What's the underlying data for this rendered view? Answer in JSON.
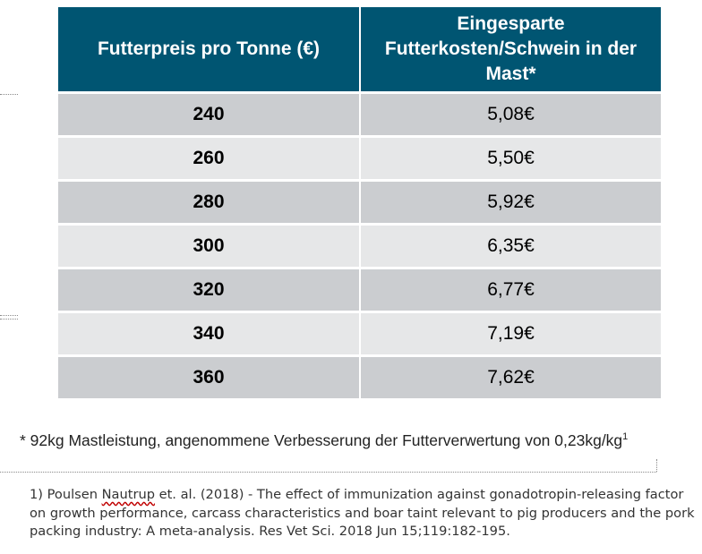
{
  "table": {
    "headers": [
      "Futterpreis pro Tonne (€)",
      "Eingesparte Futterkosten/Schwein in der Mast*"
    ],
    "rows": [
      [
        "240",
        "5,08€"
      ],
      [
        "260",
        "5,50€"
      ],
      [
        "280",
        "5,92€"
      ],
      [
        "300",
        "6,35€"
      ],
      [
        "320",
        "6,77€"
      ],
      [
        "340",
        "7,19€"
      ],
      [
        "360",
        "7,62€"
      ]
    ],
    "colors": {
      "header_bg": "#005572",
      "row_dark": "#cbcdd0",
      "row_light": "#e6e7e8"
    }
  },
  "footnote": {
    "text": "* 92kg Mastleistung, angenommene Verbesserung der Futterverwertung von 0,23kg/kg",
    "superscript": "1"
  },
  "reference": {
    "prefix": "1) Poulsen ",
    "flagged_word": "Nautrup",
    "suffix": " et. al. (2018) - The effect of immunization against gonadotropin-releasing factor on growth performance, carcass characteristics and boar taint relevant to pig producers and the pork packing industry: A meta-analysis. Res Vet Sci. 2018 Jun 15;119:182-195."
  }
}
